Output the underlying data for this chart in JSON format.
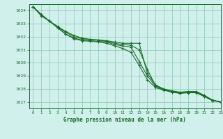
{
  "title": "Graphe pression niveau de la mer (hPa)",
  "bg_color": "#cff0eb",
  "grid_color": "#99ccbb",
  "line_color": "#1a6b2a",
  "xlim": [
    -0.5,
    23
  ],
  "ylim": [
    1026.5,
    1034.5
  ],
  "yticks": [
    1027,
    1028,
    1029,
    1030,
    1031,
    1032,
    1033,
    1034
  ],
  "xticks": [
    0,
    1,
    2,
    3,
    4,
    5,
    6,
    7,
    8,
    9,
    10,
    11,
    12,
    13,
    14,
    15,
    16,
    17,
    18,
    19,
    20,
    21,
    22,
    23
  ],
  "series": [
    [
      1034.3,
      1033.7,
      1033.2,
      1032.8,
      1032.4,
      1032.1,
      1031.9,
      1031.8,
      1031.75,
      1031.7,
      1031.6,
      1031.5,
      1031.5,
      1031.5,
      1029.2,
      1028.3,
      1028.0,
      1027.85,
      1027.75,
      1027.8,
      1027.8,
      1027.5,
      1027.15,
      1027.0
    ],
    [
      1034.3,
      1033.7,
      1033.2,
      1032.7,
      1032.2,
      1031.9,
      1031.75,
      1031.7,
      1031.65,
      1031.6,
      1031.4,
      1031.3,
      1031.2,
      1030.1,
      1029.0,
      1028.2,
      1027.95,
      1027.8,
      1027.7,
      1027.75,
      1027.75,
      1027.45,
      1027.1,
      1027.0
    ],
    [
      1034.3,
      1033.7,
      1033.2,
      1032.7,
      1032.2,
      1031.85,
      1031.7,
      1031.65,
      1031.6,
      1031.5,
      1031.3,
      1031.1,
      1030.8,
      1029.8,
      1028.7,
      1028.1,
      1027.9,
      1027.75,
      1027.65,
      1027.7,
      1027.7,
      1027.4,
      1027.1,
      1027.0
    ],
    [
      1034.3,
      1033.6,
      1033.2,
      1032.75,
      1032.35,
      1032.0,
      1031.85,
      1031.8,
      1031.75,
      1031.65,
      1031.5,
      1031.4,
      1031.35,
      1031.0,
      1029.5,
      1028.25,
      1027.95,
      1027.8,
      1027.7,
      1027.75,
      1027.75,
      1027.45,
      1027.1,
      1027.0
    ]
  ]
}
